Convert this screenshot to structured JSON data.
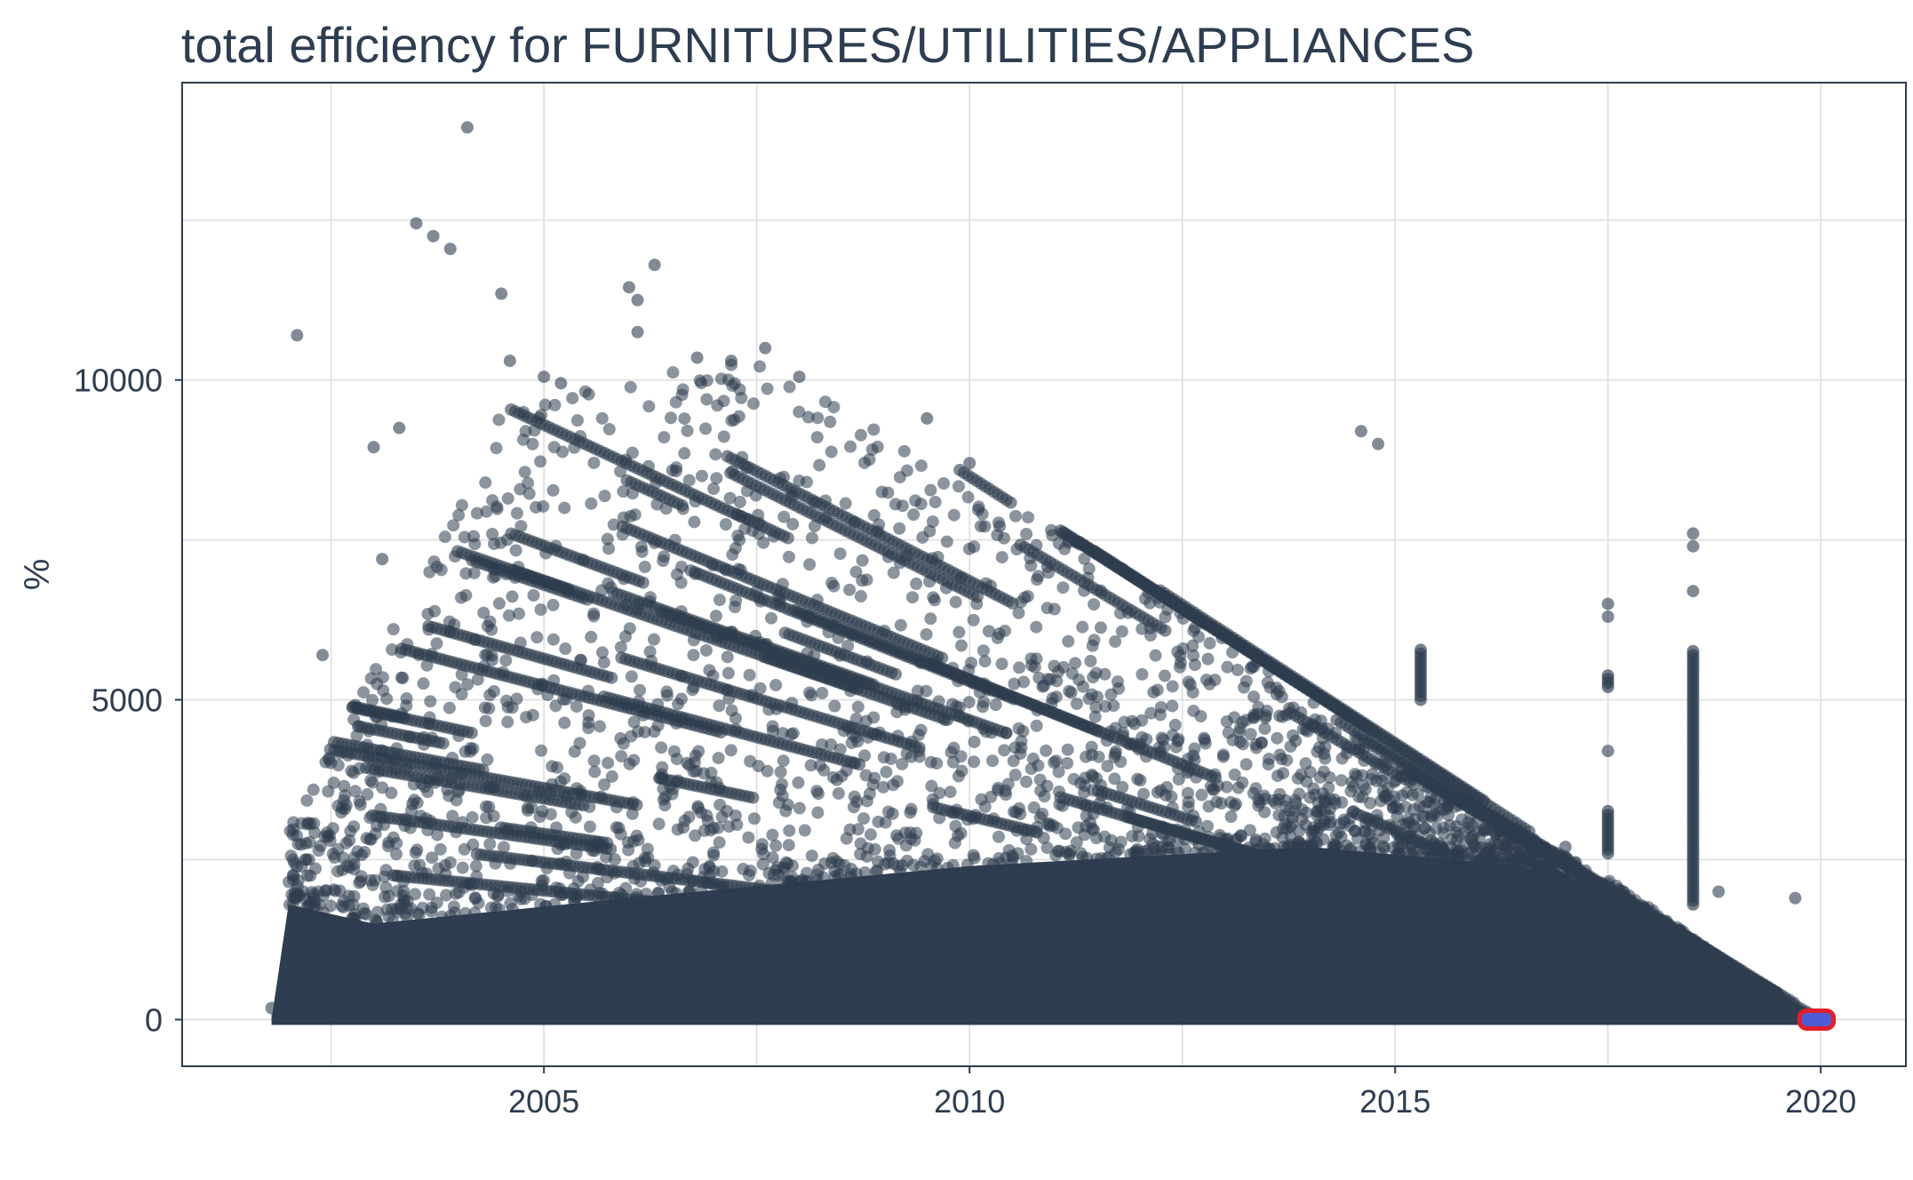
{
  "chart_data": {
    "type": "scatter",
    "title": "total efficiency for FURNITURES/UTILITIES/APPLIANCES",
    "xlabel": "",
    "ylabel": "%",
    "xlim": [
      2000.75,
      2021.0
    ],
    "ylim": [
      -730,
      14650
    ],
    "x_ticks": [
      2005,
      2010,
      2015,
      2020
    ],
    "x_tick_labels": [
      "2005",
      "2010",
      "2015",
      "2020"
    ],
    "y_ticks": [
      0,
      5000,
      10000
    ],
    "y_tick_labels": [
      "0",
      "5000",
      "10000"
    ],
    "y_minor_gridlines": [
      2500,
      7500,
      12500
    ],
    "x_minor_gridlines": [
      2002.5,
      2007.5,
      2012.5,
      2017.5
    ],
    "grid": true,
    "legend": "none",
    "colors": {
      "points": "#2e3d4f",
      "highlight_fill": "#4f5bd5",
      "highlight_outline": "#e0202a"
    },
    "series": [
      {
        "description_note": "",
        "density_band": {
          "x_start": 2001.8,
          "x_end": 2020.1,
          "lower_y": 0,
          "peak_points": [
            {
              "x": 2001.8,
              "y": 0
            },
            {
              "x": 2002.0,
              "y": 1800
            },
            {
              "x": 2003.0,
              "y": 1500
            },
            {
              "x": 2006.0,
              "y": 1900
            },
            {
              "x": 2010.0,
              "y": 2400
            },
            {
              "x": 2014.0,
              "y": 2700
            },
            {
              "x": 2016.5,
              "y": 2400
            },
            {
              "x": 2018.0,
              "y": 1500
            },
            {
              "x": 2019.5,
              "y": 400
            },
            {
              "x": 2020.1,
              "y": 0
            }
          ]
        },
        "envelope": [
          {
            "x": 2002.0,
            "y": 3000
          },
          {
            "x": 2003.0,
            "y": 5500
          },
          {
            "x": 2004.5,
            "y": 9500
          },
          {
            "x": 2007.5,
            "y": 10500
          },
          {
            "x": 2010.0,
            "y": 8500
          },
          {
            "x": 2012.5,
            "y": 6500
          },
          {
            "x": 2015.0,
            "y": 4000
          },
          {
            "x": 2017.5,
            "y": 2200
          },
          {
            "x": 2019.0,
            "y": 800
          },
          {
            "x": 2020.0,
            "y": 0
          }
        ],
        "outliers": [
          {
            "x": 2001.8,
            "y": 180
          },
          {
            "x": 2002.1,
            "y": 10700
          },
          {
            "x": 2002.4,
            "y": 5700
          },
          {
            "x": 2003.0,
            "y": 8950
          },
          {
            "x": 2003.1,
            "y": 7200
          },
          {
            "x": 2003.3,
            "y": 9250
          },
          {
            "x": 2003.5,
            "y": 12450
          },
          {
            "x": 2003.7,
            "y": 12250
          },
          {
            "x": 2003.9,
            "y": 12050
          },
          {
            "x": 2004.1,
            "y": 13950
          },
          {
            "x": 2004.5,
            "y": 11350
          },
          {
            "x": 2004.6,
            "y": 10300
          },
          {
            "x": 2005.0,
            "y": 10050
          },
          {
            "x": 2005.2,
            "y": 9950
          },
          {
            "x": 2006.0,
            "y": 11450
          },
          {
            "x": 2006.1,
            "y": 11250
          },
          {
            "x": 2006.3,
            "y": 11800
          },
          {
            "x": 2006.1,
            "y": 10750
          },
          {
            "x": 2006.8,
            "y": 10350
          },
          {
            "x": 2007.2,
            "y": 10300
          },
          {
            "x": 2007.6,
            "y": 10500
          },
          {
            "x": 2008.0,
            "y": 10050
          },
          {
            "x": 2009.5,
            "y": 9400
          },
          {
            "x": 2010.0,
            "y": 8700
          },
          {
            "x": 2014.6,
            "y": 9200
          },
          {
            "x": 2014.8,
            "y": 9000
          },
          {
            "x": 2017.5,
            "y": 6500
          },
          {
            "x": 2017.5,
            "y": 6300
          },
          {
            "x": 2017.5,
            "y": 4200
          },
          {
            "x": 2018.5,
            "y": 7600
          },
          {
            "x": 2018.5,
            "y": 7400
          },
          {
            "x": 2018.5,
            "y": 6700
          },
          {
            "x": 2019.7,
            "y": 1900
          },
          {
            "x": 2017.0,
            "y": 2700
          },
          {
            "x": 2018.8,
            "y": 2000
          }
        ],
        "vertical_clusters": [
          {
            "x": 2015.3,
            "y_from": 5000,
            "y_to": 5800
          },
          {
            "x": 2017.5,
            "y_from": 5200,
            "y_to": 5400
          },
          {
            "x": 2018.5,
            "y_from": 1800,
            "y_to": 5800
          },
          {
            "x": 2017.5,
            "y_from": 2600,
            "y_to": 3300
          }
        ]
      },
      {
        "highlight": true,
        "x_from": 2019.75,
        "x_to": 2020.15,
        "y": 0
      }
    ]
  }
}
